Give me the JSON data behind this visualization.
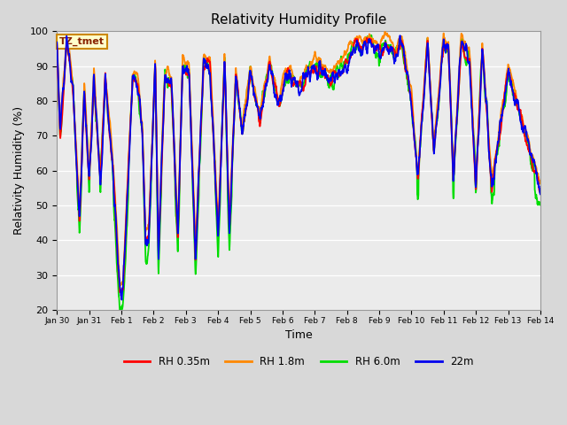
{
  "title": "Relativity Humidity Profile",
  "xlabel": "Time",
  "ylabel": "Relativity Humidity (%)",
  "ylim": [
    20,
    100
  ],
  "yticks": [
    20,
    30,
    40,
    50,
    60,
    70,
    80,
    90,
    100
  ],
  "xtick_labels": [
    "Jan 30",
    "Jan 31",
    "Feb 1",
    "Feb 2",
    "Feb 3",
    "Feb 4",
    "Feb 5",
    "Feb 6",
    "Feb 7",
    "Feb 8",
    "Feb 9",
    "Feb 10",
    "Feb 11",
    "Feb 12",
    "Feb 13",
    "Feb 14"
  ],
  "colors": {
    "RH 0.35m": "#ff0000",
    "RH 1.8m": "#ff8800",
    "RH 6.0m": "#00dd00",
    "22m": "#0000ee"
  },
  "line_width": 1.3,
  "bg_color": "#d8d8d8",
  "plot_bg_color": "#ebebeb",
  "annotation_text": "TZ_tmet",
  "annotation_box_color": "#ffffcc",
  "annotation_border_color": "#cc8800",
  "annotation_text_color": "#882200"
}
